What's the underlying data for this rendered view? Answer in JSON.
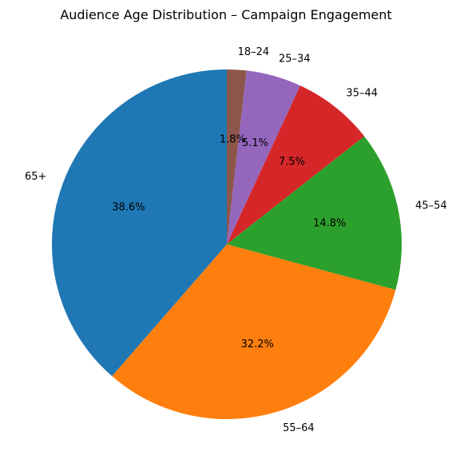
{
  "chart_data": {
    "type": "pie",
    "title": "Audience Age Distribution – Campaign Engagement",
    "categories": [
      "18–24",
      "25–34",
      "35–44",
      "45–54",
      "55–64",
      "65+"
    ],
    "values": [
      1.8,
      5.1,
      7.5,
      14.8,
      32.2,
      38.6
    ],
    "value_labels": [
      "1.8%",
      "5.1%",
      "7.5%",
      "14.8%",
      "32.2%",
      "38.6%"
    ],
    "colors": [
      "#8c564b",
      "#9467bd",
      "#d62728",
      "#2ca02c",
      "#ff7f0e",
      "#1f77b4"
    ],
    "direction": "clockwise from top",
    "legend": "none",
    "grid": false
  }
}
